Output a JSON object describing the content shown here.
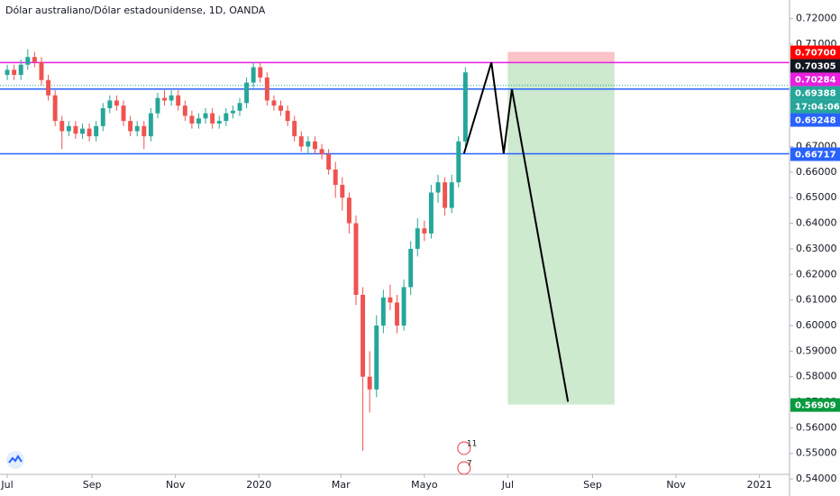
{
  "chart_data": {
    "type": "candlestick",
    "title": "Dólar australiano/Dólar estadounidense, 1D, OANDA",
    "x": [
      0,
      5,
      10,
      15,
      20,
      25,
      30,
      35,
      40,
      45,
      50,
      55,
      60,
      65,
      70,
      75,
      80,
      85,
      90,
      95,
      100,
      105,
      110,
      115,
      120,
      125,
      130,
      135,
      140,
      145,
      150,
      155,
      160,
      165,
      170,
      175,
      180,
      185,
      190,
      195,
      200,
      205,
      210,
      215,
      220,
      225,
      230,
      235,
      240,
      245,
      250,
      255,
      260,
      265,
      270,
      275,
      280,
      285,
      290,
      295,
      300,
      305,
      310,
      315,
      320,
      325,
      330,
      335
    ],
    "open": [
      0.698,
      0.7,
      0.698,
      0.702,
      0.705,
      0.703,
      0.696,
      0.69,
      0.68,
      0.676,
      0.678,
      0.675,
      0.677,
      0.674,
      0.678,
      0.685,
      0.688,
      0.686,
      0.68,
      0.676,
      0.678,
      0.674,
      0.683,
      0.689,
      0.688,
      0.69,
      0.686,
      0.682,
      0.679,
      0.681,
      0.683,
      0.679,
      0.68,
      0.683,
      0.684,
      0.687,
      0.695,
      0.701,
      0.697,
      0.688,
      0.686,
      0.684,
      0.68,
      0.674,
      0.67,
      0.672,
      0.669,
      0.667,
      0.661,
      0.655,
      0.65,
      0.64,
      0.612,
      0.58,
      0.575,
      0.6,
      0.611,
      0.609,
      0.6,
      0.615,
      0.63,
      0.638,
      0.636,
      0.652,
      0.656,
      0.646,
      0.656,
      0.672
    ],
    "high": [
      0.702,
      0.702,
      0.704,
      0.708,
      0.707,
      0.705,
      0.698,
      0.692,
      0.682,
      0.68,
      0.68,
      0.679,
      0.679,
      0.68,
      0.687,
      0.69,
      0.69,
      0.688,
      0.682,
      0.68,
      0.68,
      0.685,
      0.691,
      0.692,
      0.692,
      0.692,
      0.688,
      0.684,
      0.683,
      0.685,
      0.685,
      0.682,
      0.685,
      0.686,
      0.689,
      0.697,
      0.703,
      0.703,
      0.699,
      0.69,
      0.688,
      0.686,
      0.682,
      0.676,
      0.674,
      0.674,
      0.671,
      0.669,
      0.664,
      0.658,
      0.652,
      0.643,
      0.615,
      0.59,
      0.604,
      0.614,
      0.616,
      0.612,
      0.618,
      0.633,
      0.642,
      0.641,
      0.655,
      0.659,
      0.658,
      0.659,
      0.674,
      0.701
    ],
    "low": [
      0.696,
      0.696,
      0.696,
      0.7,
      0.701,
      0.694,
      0.688,
      0.678,
      0.669,
      0.674,
      0.673,
      0.673,
      0.672,
      0.672,
      0.676,
      0.683,
      0.684,
      0.678,
      0.674,
      0.674,
      0.669,
      0.672,
      0.681,
      0.686,
      0.686,
      0.684,
      0.68,
      0.677,
      0.677,
      0.679,
      0.677,
      0.677,
      0.678,
      0.681,
      0.682,
      0.685,
      0.693,
      0.695,
      0.686,
      0.684,
      0.682,
      0.678,
      0.672,
      0.668,
      0.667,
      0.667,
      0.665,
      0.659,
      0.65,
      0.645,
      0.636,
      0.608,
      0.551,
      0.566,
      0.572,
      0.597,
      0.606,
      0.597,
      0.598,
      0.612,
      0.627,
      0.633,
      0.634,
      0.648,
      0.643,
      0.644,
      0.654,
      0.67
    ],
    "close": [
      0.7,
      0.698,
      0.702,
      0.705,
      0.703,
      0.696,
      0.69,
      0.68,
      0.676,
      0.678,
      0.675,
      0.677,
      0.674,
      0.678,
      0.685,
      0.688,
      0.686,
      0.68,
      0.676,
      0.678,
      0.674,
      0.683,
      0.689,
      0.688,
      0.69,
      0.686,
      0.682,
      0.679,
      0.681,
      0.683,
      0.679,
      0.68,
      0.683,
      0.684,
      0.687,
      0.695,
      0.701,
      0.697,
      0.688,
      0.686,
      0.684,
      0.68,
      0.674,
      0.67,
      0.672,
      0.669,
      0.667,
      0.661,
      0.655,
      0.65,
      0.64,
      0.612,
      0.58,
      0.575,
      0.6,
      0.611,
      0.609,
      0.6,
      0.615,
      0.63,
      0.638,
      0.636,
      0.652,
      0.656,
      0.646,
      0.656,
      0.672,
      0.699
    ],
    "up_color": "#26a69a",
    "down_color": "#ef5350",
    "xlim": [
      -5.3,
      572
    ],
    "ylim": [
      0.5418,
      0.7273
    ],
    "xticks": [
      {
        "value": 0,
        "label": "Jul"
      },
      {
        "value": 62,
        "label": "Sep"
      },
      {
        "value": 123,
        "label": "Nov"
      },
      {
        "value": 184,
        "label": "2020"
      },
      {
        "value": 244,
        "label": "Mar"
      },
      {
        "value": 305,
        "label": "Mayo"
      },
      {
        "value": 366,
        "label": "Jul"
      },
      {
        "value": 428,
        "label": "Sep"
      },
      {
        "value": 489,
        "label": "Nov"
      },
      {
        "value": 550,
        "label": "2021"
      }
    ],
    "yticks": [
      {
        "value": 0.72,
        "label": "0.72000"
      },
      {
        "value": 0.71,
        "label": "0.71000"
      },
      {
        "value": 0.7,
        "label": "0.70000"
      },
      {
        "value": 0.69,
        "label": "0.69000"
      },
      {
        "value": 0.68,
        "label": "0.68000"
      },
      {
        "value": 0.67,
        "label": "0.67000"
      },
      {
        "value": 0.66,
        "label": "0.66000"
      },
      {
        "value": 0.65,
        "label": "0.65000"
      },
      {
        "value": 0.64,
        "label": "0.64000"
      },
      {
        "value": 0.63,
        "label": "0.63000"
      },
      {
        "value": 0.62,
        "label": "0.62000"
      },
      {
        "value": 0.61,
        "label": "0.61000"
      },
      {
        "value": 0.6,
        "label": "0.60000"
      },
      {
        "value": 0.59,
        "label": "0.59000"
      },
      {
        "value": 0.58,
        "label": "0.58000"
      },
      {
        "value": 0.57,
        "label": "0.57000"
      },
      {
        "value": 0.56,
        "label": "0.56000"
      },
      {
        "value": 0.55,
        "label": "0.55000"
      },
      {
        "value": 0.54,
        "label": "0.54000"
      }
    ],
    "price_labels": [
      {
        "value": 0.70284,
        "label": "0.70284",
        "color": "#e91ee0",
        "line": "solid"
      },
      {
        "value": 0.69388,
        "label": "0.69388",
        "color": "#26a69a",
        "line": "dotted",
        "countdown": "17:04:06"
      },
      {
        "value": 0.69248,
        "label": "0.69248",
        "color": "#2962ff",
        "line": "solid"
      },
      {
        "value": 0.66717,
        "label": "0.66717",
        "color": "#2962ff",
        "line": "solid"
      }
    ],
    "position": {
      "x": [
        366,
        444
      ],
      "stop": {
        "value": 0.707,
        "label": "0.70700",
        "color": "#ff0000"
      },
      "entry": {
        "value": 0.70305,
        "label": "0.70305",
        "color": "#131722"
      },
      "target": {
        "value": 0.56909,
        "label": "0.56909",
        "color": "#089a3e"
      }
    },
    "drawing": {
      "x": [
        334,
        354,
        363,
        369,
        410
      ],
      "y": [
        0.6673,
        0.7029,
        0.6673,
        0.6924,
        0.5702
      ],
      "color": "#000000"
    },
    "events": [
      {
        "x": 334,
        "label": "11"
      },
      {
        "x": 334,
        "label": "7"
      }
    ]
  }
}
